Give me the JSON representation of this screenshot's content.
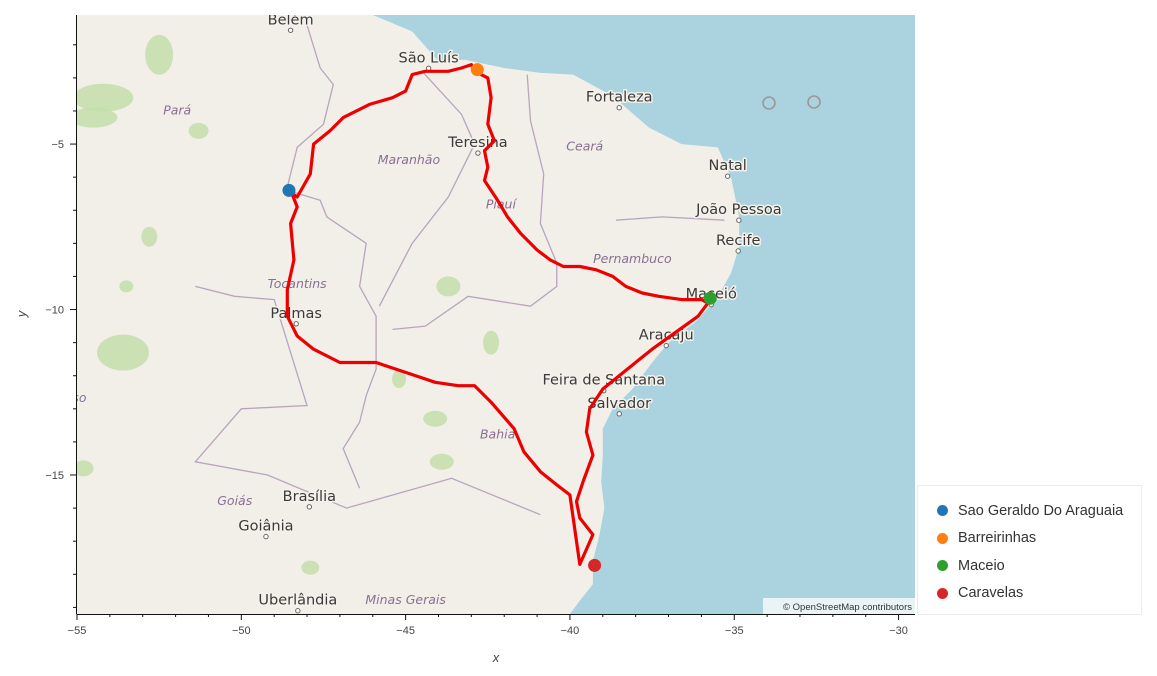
{
  "map": {
    "attribution": "© OpenStreetMap contributors",
    "colors": {
      "route": "#ee0000",
      "land": "#f2efe9",
      "sea": "#aad3df",
      "forest": "#c4deaa"
    },
    "cities": [
      {
        "name": "Belém",
        "lon": -48.5,
        "lat": -1.38
      },
      {
        "name": "São Luís",
        "lon": -44.3,
        "lat": -2.53
      },
      {
        "name": "Fortaleza",
        "lon": -38.5,
        "lat": -3.72
      },
      {
        "name": "Teresina",
        "lon": -42.8,
        "lat": -5.09
      },
      {
        "name": "Natal",
        "lon": -35.2,
        "lat": -5.79
      },
      {
        "name": "João Pessoa",
        "lon": -34.86,
        "lat": -7.12
      },
      {
        "name": "Recife",
        "lon": -34.88,
        "lat": -8.05
      },
      {
        "name": "Maceió",
        "lon": -35.7,
        "lat": -9.67
      },
      {
        "name": "Palmas",
        "lon": -48.33,
        "lat": -10.25
      },
      {
        "name": "Aracaju",
        "lon": -37.07,
        "lat": -10.91
      },
      {
        "name": "Feira de Santana",
        "lon": -38.97,
        "lat": -12.27
      },
      {
        "name": "Salvador",
        "lon": -38.5,
        "lat": -12.97
      },
      {
        "name": "Brasília",
        "lon": -47.93,
        "lat": -15.78
      },
      {
        "name": "Goiânia",
        "lon": -49.25,
        "lat": -16.68
      },
      {
        "name": "Uberlândia",
        "lon": -48.28,
        "lat": -18.92
      }
    ],
    "states": [
      {
        "name": "Pará",
        "lon": -51.95,
        "lat": -4.1
      },
      {
        "name": "Maranhão",
        "lon": -44.9,
        "lat": -5.6
      },
      {
        "name": "Ceará",
        "lon": -39.55,
        "lat": -5.2
      },
      {
        "name": "Piauí",
        "lon": -42.1,
        "lat": -6.95
      },
      {
        "name": "Pernambuco",
        "lon": -38.1,
        "lat": -8.6
      },
      {
        "name": "Tocantins",
        "lon": -48.3,
        "lat": -9.35
      },
      {
        "name": "Bahia",
        "lon": -42.2,
        "lat": -13.9
      },
      {
        "name": "Mato Grosso",
        "lon": -55.9,
        "lat": -12.8
      },
      {
        "name": "Goiás",
        "lon": -50.2,
        "lat": -15.9
      },
      {
        "name": "Minas Gerais",
        "lon": -45.0,
        "lat": -18.9
      }
    ]
  },
  "chart_data": {
    "type": "scatter",
    "xlabel": "x",
    "ylabel": "y",
    "xlim": [
      -55,
      -29.5
    ],
    "ylim": [
      -19.2,
      -1.1
    ],
    "xticks": [
      -55,
      -50,
      -45,
      -40,
      -35,
      -30
    ],
    "yticks": [
      -5,
      -10,
      -15
    ],
    "route": {
      "lon": [
        -48.6,
        -48.3,
        -47.9,
        -47.8,
        -47.3,
        -46.9,
        -46.1,
        -45.4,
        -45.0,
        -44.8,
        -44.4,
        -43.7,
        -43.3,
        -43.0,
        -42.9,
        -42.5,
        -42.4,
        -42.5,
        -42.3,
        -42.6,
        -42.5,
        -42.6,
        -42.2,
        -41.9,
        -41.5,
        -41.0,
        -40.6,
        -40.2,
        -39.7,
        -39.2,
        -38.7,
        -38.3,
        -37.8,
        -37.3,
        -36.6,
        -36.0,
        -35.8,
        -36.1,
        -37.5,
        -38.5,
        -39.0,
        -39.4,
        -39.5,
        -39.3,
        -39.6,
        -39.8,
        -39.7,
        -39.3,
        -39.7,
        -40.0,
        -40.4,
        -40.9,
        -41.4,
        -41.7,
        -42.4,
        -42.9,
        -43.4,
        -44.1,
        -45.0,
        -45.9,
        -47.0,
        -47.8,
        -48.3,
        -48.6,
        -48.6,
        -48.4,
        -48.5,
        -48.3,
        -48.5,
        -48.6
      ],
      "lat": [
        -6.4,
        -6.6,
        -5.9,
        -5.0,
        -4.6,
        -4.2,
        -3.8,
        -3.6,
        -3.4,
        -2.9,
        -2.8,
        -2.8,
        -2.7,
        -2.6,
        -2.8,
        -3.0,
        -3.6,
        -4.4,
        -4.9,
        -5.2,
        -5.7,
        -6.1,
        -6.7,
        -7.2,
        -7.7,
        -8.2,
        -8.5,
        -8.7,
        -8.7,
        -8.8,
        -9.0,
        -9.3,
        -9.5,
        -9.6,
        -9.7,
        -9.7,
        -9.8,
        -10.2,
        -11.2,
        -12.0,
        -12.4,
        -13.0,
        -13.7,
        -14.4,
        -15.2,
        -15.8,
        -16.3,
        -16.8,
        -17.7,
        -15.6,
        -15.3,
        -14.9,
        -14.3,
        -13.6,
        -12.8,
        -12.3,
        -12.3,
        -12.2,
        -11.9,
        -11.6,
        -11.6,
        -11.2,
        -10.8,
        -10.2,
        -9.4,
        -8.5,
        -7.4,
        -6.9,
        -6.4,
        -6.4
      ]
    },
    "series": [
      {
        "name": "Sao Geraldo Do Araguaia",
        "x": [
          -48.55
        ],
        "y": [
          -6.4
        ],
        "color": "#1f77b4"
      },
      {
        "name": "Barreirinhas",
        "x": [
          -42.82
        ],
        "y": [
          -2.75
        ],
        "color": "#ff7f0e"
      },
      {
        "name": "Maceio",
        "x": [
          -35.73
        ],
        "y": [
          -9.66
        ],
        "color": "#2ca02c"
      },
      {
        "name": "Caravelas",
        "x": [
          -39.25
        ],
        "y": [
          -17.73
        ],
        "color": "#d62728"
      }
    ]
  }
}
